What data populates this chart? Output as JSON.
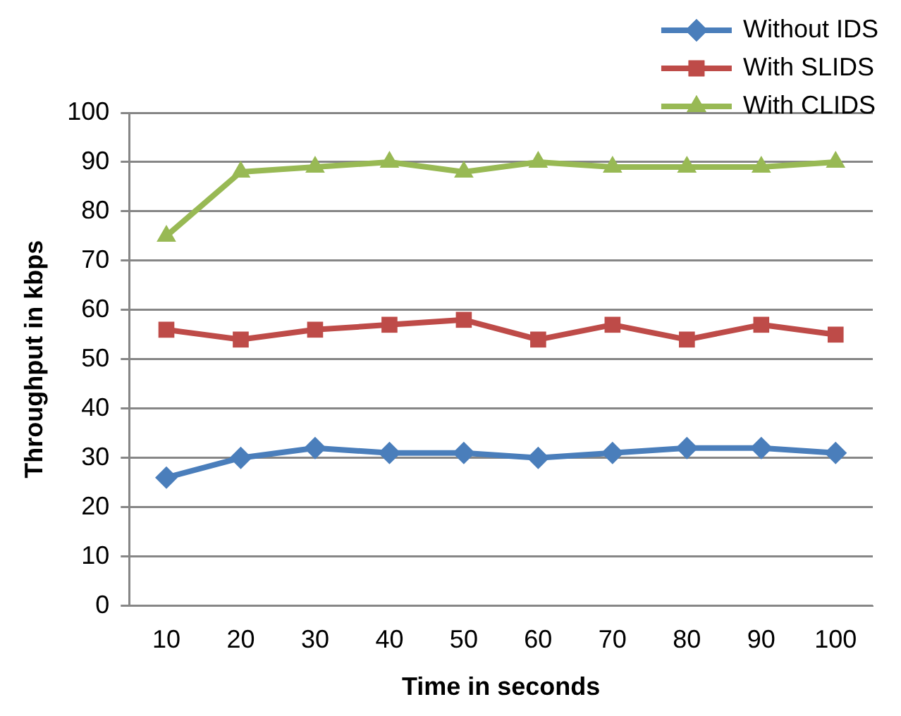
{
  "chart_data": {
    "type": "line",
    "xlabel": "Time in seconds",
    "ylabel": "Throughput in kbps",
    "categories": [
      "10",
      "20",
      "30",
      "40",
      "50",
      "60",
      "70",
      "80",
      "90",
      "100"
    ],
    "series": [
      {
        "name": "Without IDS",
        "color": "#4a7ebb",
        "marker": "diamond",
        "values": [
          26,
          30,
          32,
          31,
          31,
          30,
          31,
          32,
          32,
          31
        ]
      },
      {
        "name": "With SLIDS",
        "color": "#be4b48",
        "marker": "square",
        "values": [
          56,
          54,
          56,
          57,
          58,
          54,
          57,
          54,
          57,
          55
        ]
      },
      {
        "name": "With CLIDS",
        "color": "#98b954",
        "marker": "triangle",
        "values": [
          75,
          88,
          89,
          90,
          88,
          90,
          89,
          89,
          89,
          90
        ]
      }
    ],
    "ylim": [
      0,
      100
    ],
    "yticks": [
      0,
      10,
      20,
      30,
      40,
      50,
      60,
      70,
      80,
      90,
      100
    ],
    "grid": "y",
    "legend": "top right",
    "line_style": "solid"
  }
}
